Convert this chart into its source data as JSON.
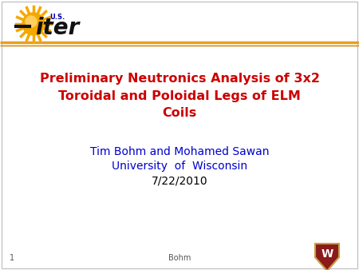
{
  "title_line1": "Preliminary Neutronics Analysis of 3x2",
  "title_line2": "Toroidal and Poloidal Legs of ELM",
  "title_line3": "Coils",
  "title_color": "#CC0000",
  "author_line1": "Tim Bohm and Mohamed Sawan",
  "author_line2": "University  of  Wisconsin",
  "author_line3": "7/22/2010",
  "author_color": "#0000CC",
  "date_color": "#000000",
  "background_color": "#FFFFFF",
  "header_line_color": "#E8A020",
  "header_line2_color": "#C8800A",
  "footer_text": "Bohm",
  "footer_page": "1",
  "footer_color": "#555555",
  "title_fontsize": 11.5,
  "author_fontsize": 10,
  "date_fontsize": 10,
  "iter_text_color": "#111111",
  "us_text_color": "#0000AA",
  "sun_color": "#F5A800",
  "sun_inner_color": "#FFFFFF",
  "uw_shield_color": "#8B1A1A",
  "uw_text_color": "#FFFFFF"
}
